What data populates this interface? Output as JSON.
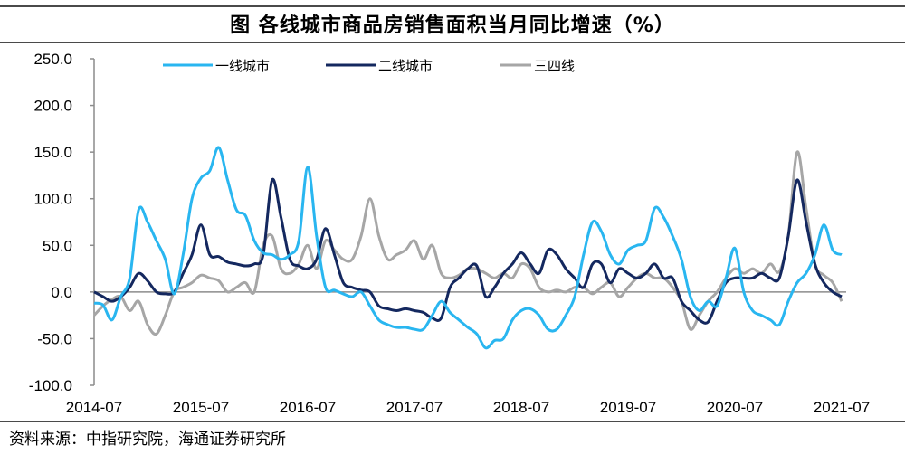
{
  "header": {
    "title": "图  各线城市商品房销售面积当月同比增速（%）"
  },
  "footer": {
    "source": "资料来源：中指研究院，海通证券研究所"
  },
  "colors": {
    "tier1": "#29b6f0",
    "tier2": "#14285f",
    "tier34": "#a6a6a6",
    "axis": "#8c8c8c"
  },
  "chart_data": {
    "type": "line",
    "title": "图 各线城市商品房销售面积当月同比增速（%）",
    "xlabel": "",
    "ylabel": "",
    "ylim": [
      -100,
      250
    ],
    "yticks": [
      "250.0",
      "200.0",
      "150.0",
      "100.0",
      "50.0",
      "0.0",
      "-50.0",
      "-100.0"
    ],
    "xticks": [
      "2014-07",
      "2015-07",
      "2016-07",
      "2017-07",
      "2018-07",
      "2019-07",
      "2020-07",
      "2021-07"
    ],
    "x_start": "2014-07",
    "x_end": "2021-07",
    "frequency": "monthly",
    "legend_position": "top",
    "grid": false,
    "series": [
      {
        "name": "一线城市",
        "color": "#29b6f0",
        "values": [
          -12,
          -14,
          -30,
          -5,
          15,
          88,
          75,
          55,
          35,
          -2,
          40,
          100,
          122,
          130,
          155,
          120,
          88,
          82,
          55,
          42,
          40,
          35,
          40,
          55,
          134,
          60,
          5,
          2,
          -2,
          -5,
          0,
          -15,
          -30,
          -35,
          -38,
          -38,
          -40,
          -40,
          -25,
          -10,
          -22,
          -30,
          -38,
          -45,
          -60,
          -52,
          -50,
          -30,
          -20,
          -18,
          -25,
          -40,
          -40,
          -25,
          -5,
          40,
          75,
          65,
          40,
          30,
          45,
          50,
          55,
          90,
          80,
          60,
          35,
          -5,
          -20,
          -10,
          -15,
          15,
          47,
          0,
          -20,
          -25,
          -30,
          -35,
          -10,
          10,
          20,
          40,
          72,
          45,
          40
        ]
      },
      {
        "name": "二线城市",
        "color": "#14285f",
        "values": [
          0,
          -5,
          -10,
          -5,
          5,
          20,
          12,
          0,
          -2,
          0,
          20,
          40,
          72,
          40,
          38,
          32,
          30,
          28,
          30,
          40,
          120,
          80,
          35,
          28,
          25,
          35,
          68,
          40,
          10,
          5,
          2,
          0,
          -15,
          -18,
          -20,
          -18,
          -20,
          -22,
          -28,
          -28,
          5,
          15,
          25,
          28,
          -5,
          5,
          20,
          30,
          42,
          30,
          20,
          45,
          40,
          25,
          15,
          5,
          30,
          30,
          10,
          25,
          20,
          15,
          20,
          30,
          15,
          15,
          -10,
          -20,
          -30,
          -32,
          -10,
          10,
          15,
          15,
          15,
          20,
          15,
          15,
          60,
          120,
          75,
          30,
          10,
          0,
          -5
        ]
      },
      {
        "name": "三四线",
        "color": "#a6a6a6",
        "values": [
          -25,
          -15,
          -8,
          -5,
          -20,
          -10,
          -35,
          -45,
          -25,
          0,
          5,
          10,
          18,
          15,
          12,
          0,
          5,
          10,
          0,
          50,
          60,
          25,
          20,
          30,
          50,
          25,
          55,
          45,
          35,
          35,
          60,
          100,
          60,
          35,
          40,
          45,
          55,
          35,
          50,
          20,
          15,
          18,
          25,
          25,
          20,
          15,
          20,
          15,
          30,
          25,
          5,
          0,
          2,
          0,
          5,
          5,
          -2,
          5,
          10,
          -5,
          5,
          15,
          20,
          15,
          15,
          5,
          -10,
          -40,
          -25,
          -10,
          0,
          15,
          25,
          20,
          25,
          20,
          30,
          22,
          60,
          150,
          90,
          30,
          18,
          10,
          -10
        ]
      }
    ]
  },
  "legend": {
    "items": [
      {
        "label": "一线城市"
      },
      {
        "label": "二线城市"
      },
      {
        "label": "三四线"
      }
    ]
  }
}
